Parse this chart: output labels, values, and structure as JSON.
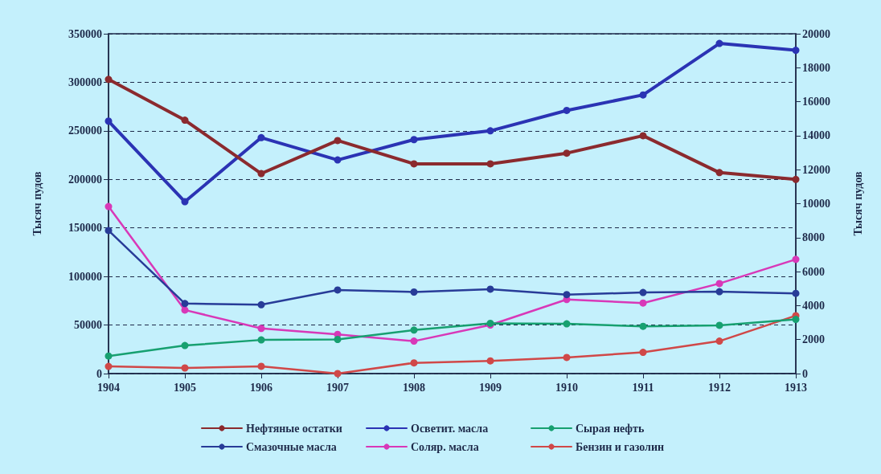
{
  "chart_data": {
    "type": "line",
    "categories": [
      "1904",
      "1905",
      "1906",
      "1907",
      "1908",
      "1909",
      "1910",
      "1911",
      "1912",
      "1913"
    ],
    "ylabel": "Тысяч пудов",
    "y2label": "Тысяч пудов",
    "ylim": [
      0,
      350000
    ],
    "yticks": [
      0,
      50000,
      100000,
      150000,
      200000,
      250000,
      300000,
      350000
    ],
    "y2lim": [
      0,
      20000
    ],
    "y2ticks": [
      0,
      2000,
      4000,
      6000,
      8000,
      10000,
      12000,
      14000,
      16000,
      18000,
      20000
    ],
    "grid": "y",
    "legend": "bottom",
    "marker": "circle",
    "line_style": "solid",
    "series": [
      {
        "name": "Нефтяные остатки",
        "color": "#8b2a2e",
        "values": [
          303000,
          261000,
          206000,
          240000,
          216000,
          216000,
          227000,
          245000,
          207000,
          200000
        ]
      },
      {
        "name": "Осветит. масла",
        "color": "#2b33b4",
        "values": [
          260000,
          177000,
          243000,
          220000,
          241000,
          250000,
          271000,
          287000,
          340000,
          333000
        ]
      },
      {
        "name": "Сырая нефть",
        "color": "#17a070",
        "axis": "y2",
        "values": [
          1030,
          1650,
          1980,
          2010,
          2560,
          2960,
          2930,
          2780,
          2840,
          3190
        ]
      },
      {
        "name": "Смазочные масла",
        "color": "#283c98",
        "axis": "y2",
        "values": [
          8420,
          4120,
          4050,
          4920,
          4800,
          4970,
          4650,
          4770,
          4820,
          4720
        ]
      },
      {
        "name": "Соляр. масла",
        "color": "#d838b8",
        "axis": "y2",
        "values": [
          9830,
          3740,
          2660,
          2310,
          1910,
          2860,
          4360,
          4150,
          5300,
          6720
        ]
      },
      {
        "name": "Бензин и газолин",
        "color": "#d04848",
        "axis": "y2",
        "values": [
          420,
          330,
          430,
          0,
          630,
          750,
          950,
          1250,
          1910,
          3410
        ]
      }
    ]
  }
}
